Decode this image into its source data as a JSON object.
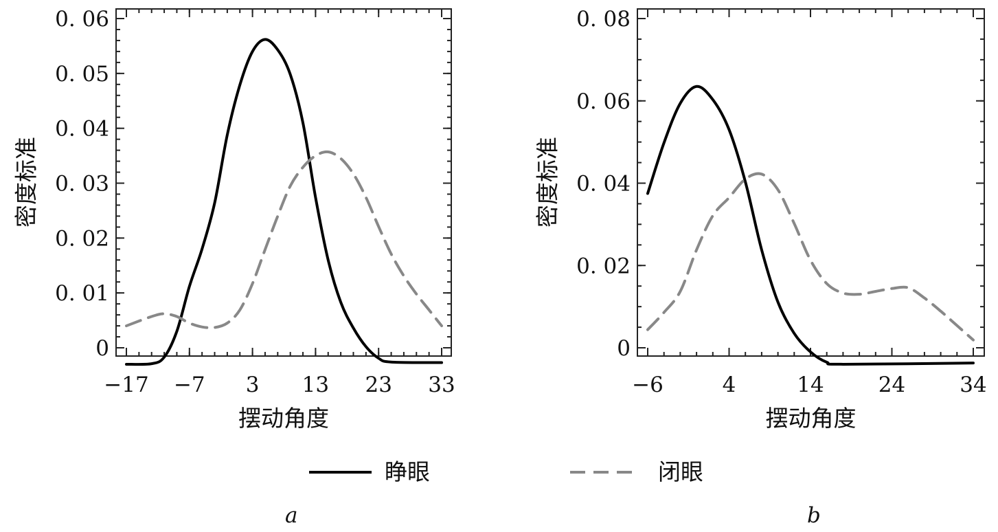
{
  "legend": {
    "solid_label": "睁眼",
    "dashed_label": "闭眼"
  },
  "colors": {
    "solid": "#000000",
    "dashed": "#888888"
  },
  "chart_data": [
    {
      "type": "line",
      "panel": "a",
      "xlabel": "摆动角度",
      "ylabel": "密度标准",
      "xlim": [
        -17,
        33
      ],
      "ylim": [
        -0.003,
        0.06
      ],
      "xticks": [
        -17,
        -7,
        3,
        13,
        23,
        33
      ],
      "xtick_labels": [
        "−17",
        "−7",
        "3",
        "13",
        "23",
        "33"
      ],
      "yticks": [
        0,
        0.01,
        0.02,
        0.03,
        0.04,
        0.05,
        0.06
      ],
      "ytick_labels": [
        "0",
        "0. 01",
        "0. 02",
        "0. 03",
        "0. 04",
        "0. 05",
        "0. 06"
      ],
      "xminor": 2,
      "yminor": 0.002,
      "series": [
        {
          "name": "睁眼",
          "style": "solid",
          "x": [
            -17,
            -13,
            -11,
            -9,
            -7,
            -5,
            -3,
            -1,
            1,
            3,
            5,
            7,
            9,
            11,
            13,
            15,
            17,
            19,
            21,
            23,
            25,
            33
          ],
          "y": [
            -0.003,
            -0.0029,
            -0.0017,
            0.003,
            0.0112,
            0.018,
            0.0264,
            0.0388,
            0.0479,
            0.054,
            0.0562,
            0.0543,
            0.0498,
            0.041,
            0.0274,
            0.016,
            0.0083,
            0.0036,
            0.0002,
            -0.0019,
            -0.0026,
            -0.0027
          ]
        },
        {
          "name": "闭眼",
          "style": "dashed",
          "x": [
            -17,
            -13,
            -11,
            -9,
            -7,
            -5,
            -3,
            -1,
            1,
            3,
            5,
            7,
            9,
            11,
            13,
            15,
            17,
            19,
            21,
            23,
            25,
            27,
            29,
            31,
            33
          ],
          "y": [
            0.004,
            0.0057,
            0.0062,
            0.0057,
            0.0045,
            0.0038,
            0.0037,
            0.0045,
            0.0069,
            0.0117,
            0.0179,
            0.024,
            0.0295,
            0.0329,
            0.035,
            0.0357,
            0.0345,
            0.0317,
            0.0274,
            0.0221,
            0.0171,
            0.0131,
            0.0098,
            0.0069,
            0.004
          ]
        }
      ]
    },
    {
      "type": "line",
      "panel": "b",
      "xlabel": "摆动角度",
      "ylabel": "密度标准",
      "xlim": [
        -6,
        34
      ],
      "ylim": [
        -0.004,
        0.08
      ],
      "xticks": [
        -6,
        4,
        14,
        24,
        34
      ],
      "xtick_labels": [
        "−6",
        "4",
        "14",
        "24",
        "34"
      ],
      "yticks": [
        0,
        0.02,
        0.04,
        0.06,
        0.08
      ],
      "ytick_labels": [
        "0",
        "0. 02",
        "0. 04",
        "0. 06",
        "0. 08"
      ],
      "xminor": 2,
      "yminor": 0.005,
      "series": [
        {
          "name": "睁眼",
          "style": "solid",
          "x": [
            -6,
            -4,
            -2,
            0,
            2,
            4,
            6,
            8,
            10,
            12,
            14,
            16,
            18,
            34
          ],
          "y": [
            0.0375,
            0.0498,
            0.0594,
            0.0635,
            0.0603,
            0.053,
            0.0403,
            0.0238,
            0.0111,
            0.0035,
            -0.001,
            -0.0035,
            -0.004,
            -0.0037
          ]
        },
        {
          "name": "闭眼",
          "style": "dashed",
          "x": [
            -6,
            -4,
            -2,
            0,
            2,
            4,
            6,
            8,
            10,
            12,
            14,
            16,
            18,
            20,
            22,
            24,
            26,
            28,
            30,
            32,
            34
          ],
          "y": [
            0.0044,
            0.0086,
            0.0137,
            0.0238,
            0.0321,
            0.0365,
            0.041,
            0.0422,
            0.0384,
            0.0302,
            0.0213,
            0.0156,
            0.0133,
            0.013,
            0.0137,
            0.0144,
            0.0146,
            0.0121,
            0.0089,
            0.0054,
            0.0019
          ]
        }
      ]
    }
  ],
  "captions": [
    "a",
    "b"
  ]
}
